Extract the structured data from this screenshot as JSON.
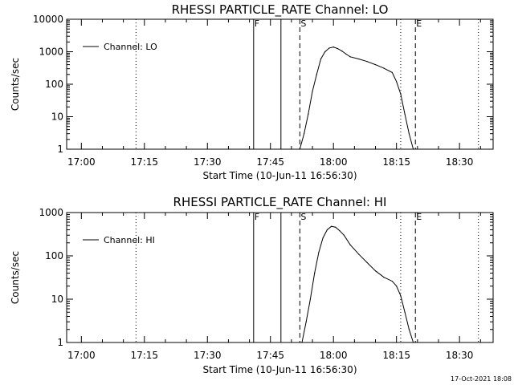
{
  "timestamp": "17-Oct-2021 18:08",
  "chart_data": [
    {
      "type": "line",
      "title": "RHESSI PARTICLE_RATE Channel: LO",
      "xlabel": "Start Time (10-Jun-11 16:56:30)",
      "ylabel": "Counts/sec",
      "yscale": "log",
      "ylim": [
        1,
        10000
      ],
      "xlim": [
        "16:56:30",
        "18:38:00"
      ],
      "x_ticks": [
        "17:00",
        "17:15",
        "17:30",
        "17:45",
        "18:00",
        "18:15",
        "18:30"
      ],
      "y_ticks": [
        "1",
        "10",
        "100",
        "1000",
        "10000"
      ],
      "legend": "top-left",
      "series": [
        {
          "name": "Channel: LO",
          "x": [
            "17:52:00",
            "17:53:00",
            "17:54:00",
            "17:55:00",
            "17:56:00",
            "17:57:00",
            "17:58:00",
            "17:59:00",
            "18:00:00",
            "18:01:00",
            "18:02:00",
            "18:03:00",
            "18:04:00",
            "18:06:00",
            "18:08:00",
            "18:10:00",
            "18:12:00",
            "18:14:00",
            "18:15:00",
            "18:16:00",
            "18:17:00",
            "18:18:00",
            "18:19:00"
          ],
          "values": [
            1,
            3,
            12,
            60,
            200,
            600,
            1000,
            1300,
            1400,
            1250,
            1050,
            850,
            700,
            600,
            500,
            400,
            310,
            230,
            120,
            50,
            12,
            3,
            1
          ]
        }
      ],
      "markers": [
        {
          "label": "F",
          "time": "17:41:00",
          "style": "solid"
        },
        {
          "label": "",
          "time": "17:47:30",
          "style": "solid"
        },
        {
          "label": "S",
          "time": "17:52:00",
          "style": "dashed"
        },
        {
          "label": "E",
          "time": "18:19:30",
          "style": "dashed"
        },
        {
          "label": "",
          "time": "17:13:00",
          "style": "dotted"
        },
        {
          "label": "",
          "time": "18:16:00",
          "style": "dotted"
        },
        {
          "label": "",
          "time": "18:34:30",
          "style": "dotted"
        }
      ]
    },
    {
      "type": "line",
      "title": "RHESSI PARTICLE_RATE Channel: HI",
      "xlabel": "Start Time (10-Jun-11 16:56:30)",
      "ylabel": "Counts/sec",
      "yscale": "log",
      "ylim": [
        1,
        1000
      ],
      "xlim": [
        "16:56:30",
        "18:38:00"
      ],
      "x_ticks": [
        "17:00",
        "17:15",
        "17:30",
        "17:45",
        "18:00",
        "18:15",
        "18:30"
      ],
      "y_ticks": [
        "1",
        "10",
        "100",
        "1000"
      ],
      "legend": "top-left",
      "series": [
        {
          "name": "Channel: HI",
          "x": [
            "17:52:30",
            "17:53:30",
            "17:54:30",
            "17:55:30",
            "17:56:30",
            "17:57:30",
            "17:58:30",
            "17:59:30",
            "18:00:30",
            "18:01:30",
            "18:02:30",
            "18:04:00",
            "18:06:00",
            "18:08:00",
            "18:10:00",
            "18:12:00",
            "18:14:00",
            "18:15:00",
            "18:16:00",
            "18:17:00",
            "18:18:00",
            "18:19:00"
          ],
          "values": [
            1,
            3,
            10,
            40,
            120,
            260,
            400,
            480,
            460,
            380,
            300,
            180,
            110,
            70,
            45,
            32,
            26,
            20,
            12,
            5,
            2,
            1
          ]
        }
      ],
      "markers": [
        {
          "label": "F",
          "time": "17:41:00",
          "style": "solid"
        },
        {
          "label": "",
          "time": "17:47:30",
          "style": "solid"
        },
        {
          "label": "S",
          "time": "17:52:00",
          "style": "dashed"
        },
        {
          "label": "E",
          "time": "18:19:30",
          "style": "dashed"
        },
        {
          "label": "",
          "time": "17:13:00",
          "style": "dotted"
        },
        {
          "label": "",
          "time": "18:16:00",
          "style": "dotted"
        },
        {
          "label": "",
          "time": "18:34:30",
          "style": "dotted"
        }
      ]
    }
  ]
}
